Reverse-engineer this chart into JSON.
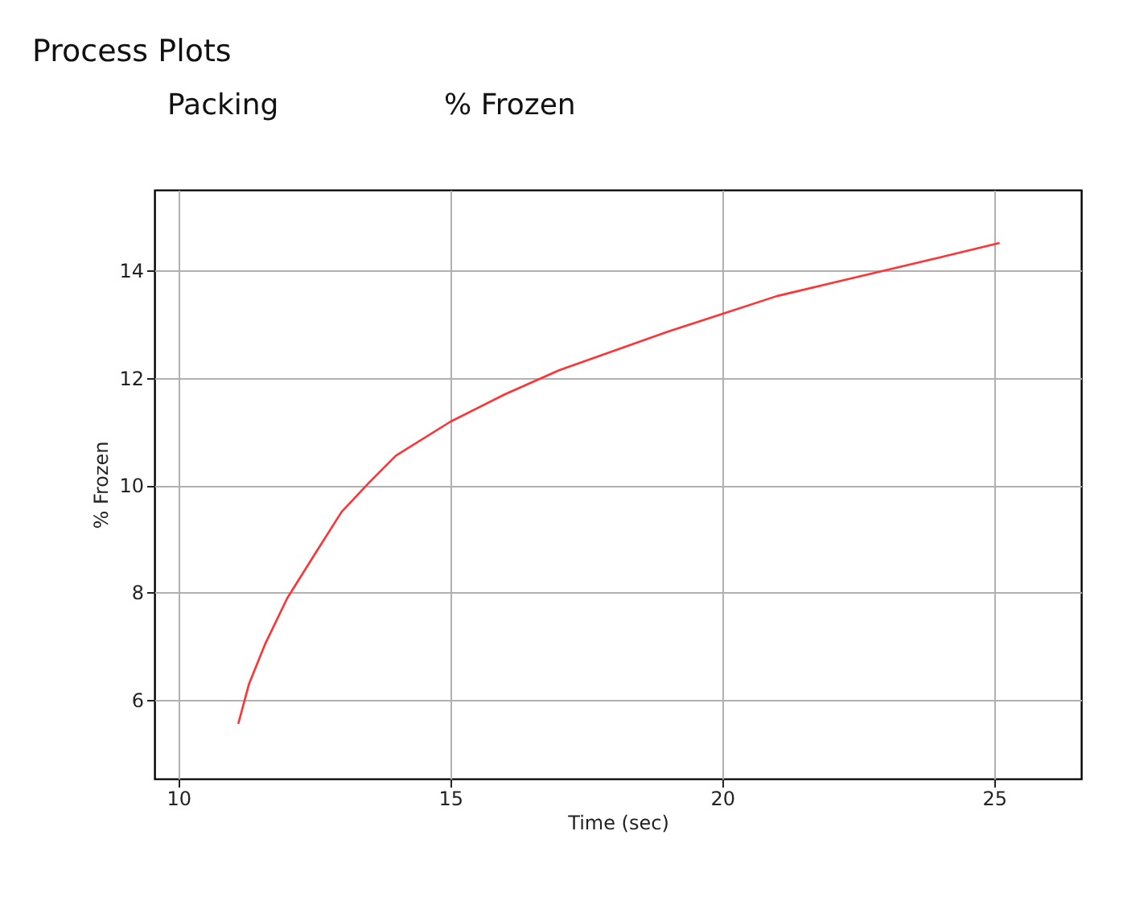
{
  "chart_data": {
    "type": "line",
    "title": "Process Plots",
    "annotations": [
      "Packing",
      "% Frozen"
    ],
    "xlabel": "Time (sec)",
    "ylabel": "% Frozen",
    "x": [
      11.1,
      11.3,
      11.6,
      12,
      12.5,
      13,
      13.5,
      14,
      15,
      16,
      17,
      18,
      19,
      20,
      21,
      22,
      23,
      24,
      25.1
    ],
    "series": [
      {
        "color": "#ff3333",
        "values": [
          5.55,
          6.3,
          7.05,
          7.89,
          8.7,
          9.5,
          10.04,
          10.55,
          11.18,
          11.69,
          12.14,
          12.5,
          12.86,
          13.19,
          13.52,
          13.76,
          14.0,
          14.24,
          14.51
        ]
      }
    ],
    "xlim": [
      9.56,
      26.6
    ],
    "ylim": [
      4.53,
      15.5
    ],
    "xticks": [
      10,
      15,
      20,
      25
    ],
    "yticks": [
      6,
      8,
      10,
      12,
      14
    ],
    "grid": true
  }
}
